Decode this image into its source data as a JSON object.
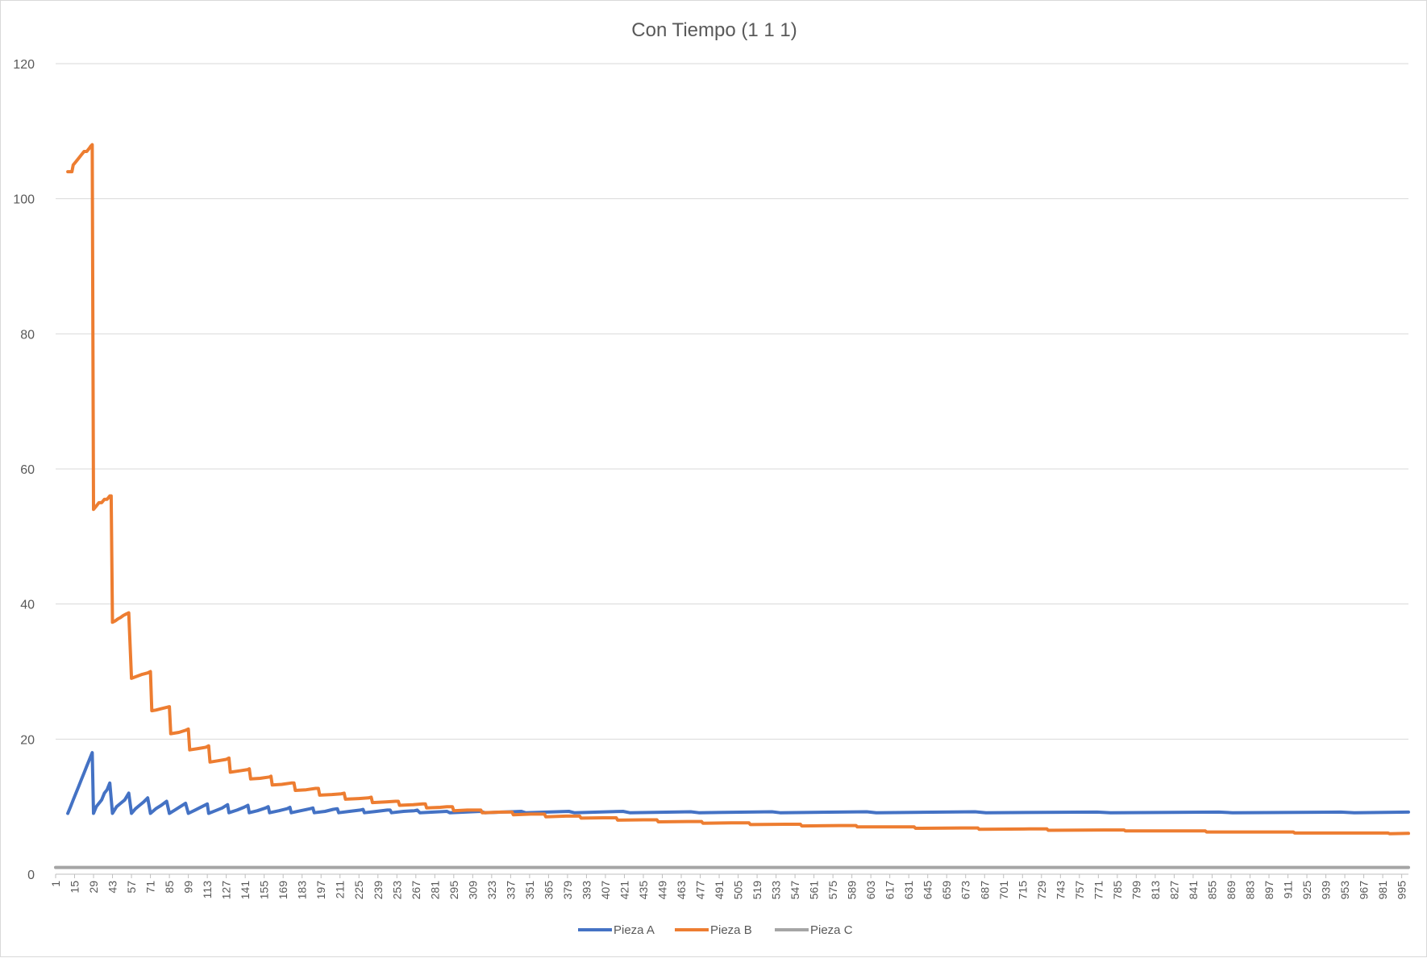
{
  "chart_data": {
    "type": "line",
    "title": "Con Tiempo (1 1 1)",
    "xlabel": "",
    "ylabel": "",
    "ylim": [
      0,
      120
    ],
    "yticks": [
      0,
      20,
      40,
      60,
      80,
      100,
      120
    ],
    "xlim": [
      1,
      1000
    ],
    "xticks": [
      1,
      15,
      29,
      43,
      57,
      71,
      85,
      99,
      113,
      127,
      141,
      155,
      169,
      183,
      197,
      211,
      225,
      239,
      253,
      267,
      281,
      295,
      309,
      323,
      337,
      351,
      365,
      379,
      393,
      407,
      421,
      435,
      449,
      463,
      477,
      491,
      505,
      519,
      533,
      547,
      561,
      575,
      589,
      603,
      617,
      631,
      645,
      659,
      673,
      687,
      701,
      715,
      729,
      743,
      757,
      771,
      785,
      799,
      813,
      827,
      841,
      855,
      869,
      883,
      897,
      911,
      925,
      939,
      953,
      967,
      981,
      995
    ],
    "grid": true,
    "legend_position": "bottom",
    "series": [
      {
        "name": "Pieza A",
        "color": "#4472C4",
        "points": [
          [
            10,
            9
          ],
          [
            12,
            10
          ],
          [
            14,
            11
          ],
          [
            16,
            12
          ],
          [
            18,
            13
          ],
          [
            20,
            14
          ],
          [
            22,
            15
          ],
          [
            24,
            16
          ],
          [
            26,
            17
          ],
          [
            28,
            18
          ],
          [
            29,
            9
          ],
          [
            31,
            10
          ],
          [
            33,
            10.5
          ],
          [
            35,
            11
          ],
          [
            37,
            12
          ],
          [
            39,
            12.5
          ],
          [
            41,
            13.5
          ],
          [
            43,
            9
          ],
          [
            46,
            10
          ],
          [
            49,
            10.5
          ],
          [
            52,
            11
          ],
          [
            55,
            12
          ],
          [
            57,
            9
          ],
          [
            60,
            9.7
          ],
          [
            63,
            10.2
          ],
          [
            66,
            10.7
          ],
          [
            69,
            11.3
          ],
          [
            71,
            9
          ],
          [
            75,
            9.7
          ],
          [
            79,
            10.2
          ],
          [
            83,
            10.8
          ],
          [
            85,
            9
          ],
          [
            89,
            9.5
          ],
          [
            93,
            10
          ],
          [
            97,
            10.5
          ],
          [
            99,
            9
          ],
          [
            104,
            9.5
          ],
          [
            109,
            10
          ],
          [
            113,
            10.4
          ],
          [
            114,
            9
          ],
          [
            119,
            9.4
          ],
          [
            124,
            9.8
          ],
          [
            128,
            10.3
          ],
          [
            129,
            9.1
          ],
          [
            135,
            9.5
          ],
          [
            140,
            9.9
          ],
          [
            143,
            10.2
          ],
          [
            144,
            9.1
          ],
          [
            150,
            9.4
          ],
          [
            156,
            9.8
          ],
          [
            158,
            10
          ],
          [
            159,
            9.1
          ],
          [
            166,
            9.4
          ],
          [
            172,
            9.7
          ],
          [
            174,
            9.9
          ],
          [
            175,
            9.1
          ],
          [
            182,
            9.4
          ],
          [
            189,
            9.7
          ],
          [
            191,
            9.8
          ],
          [
            192,
            9.1
          ],
          [
            200,
            9.3
          ],
          [
            206,
            9.6
          ],
          [
            209,
            9.7
          ],
          [
            210,
            9.1
          ],
          [
            218,
            9.3
          ],
          [
            226,
            9.5
          ],
          [
            228,
            9.6
          ],
          [
            229,
            9.1
          ],
          [
            238,
            9.3
          ],
          [
            246,
            9.5
          ],
          [
            248,
            9.5
          ],
          [
            249,
            9.1
          ],
          [
            258,
            9.3
          ],
          [
            266,
            9.4
          ],
          [
            268,
            9.5
          ],
          [
            270,
            9.1
          ],
          [
            290,
            9.3
          ],
          [
            292,
            9.1
          ],
          [
            315,
            9.3
          ],
          [
            318,
            9.1
          ],
          [
            345,
            9.3
          ],
          [
            348,
            9.1
          ],
          [
            380,
            9.3
          ],
          [
            384,
            9.1
          ],
          [
            420,
            9.3
          ],
          [
            425,
            9.1
          ],
          [
            470,
            9.25
          ],
          [
            476,
            9.1
          ],
          [
            530,
            9.25
          ],
          [
            536,
            9.1
          ],
          [
            600,
            9.25
          ],
          [
            607,
            9.1
          ],
          [
            680,
            9.25
          ],
          [
            688,
            9.1
          ],
          [
            770,
            9.2
          ],
          [
            780,
            9.1
          ],
          [
            860,
            9.2
          ],
          [
            870,
            9.1
          ],
          [
            950,
            9.2
          ],
          [
            960,
            9.1
          ],
          [
            1000,
            9.2
          ]
        ]
      },
      {
        "name": "Pieza B",
        "color": "#ED7D31",
        "points": [
          [
            10,
            104
          ],
          [
            13,
            104
          ],
          [
            14,
            105
          ],
          [
            16,
            105.5
          ],
          [
            18,
            106
          ],
          [
            20,
            106.5
          ],
          [
            22,
            107
          ],
          [
            24,
            107
          ],
          [
            26,
            107.5
          ],
          [
            27,
            107.8
          ],
          [
            28,
            108
          ],
          [
            29,
            54
          ],
          [
            31,
            54.5
          ],
          [
            33,
            55
          ],
          [
            35,
            55
          ],
          [
            37,
            55.5
          ],
          [
            39,
            55.5
          ],
          [
            41,
            56
          ],
          [
            42,
            56
          ],
          [
            43,
            37.3
          ],
          [
            45,
            37.5
          ],
          [
            47,
            37.8
          ],
          [
            49,
            38
          ],
          [
            51,
            38.3
          ],
          [
            53,
            38.5
          ],
          [
            55,
            38.7
          ],
          [
            57,
            29
          ],
          [
            61,
            29.3
          ],
          [
            65,
            29.6
          ],
          [
            69,
            29.8
          ],
          [
            71,
            30
          ],
          [
            72,
            24.2
          ],
          [
            75,
            24.3
          ],
          [
            79,
            24.5
          ],
          [
            83,
            24.7
          ],
          [
            85,
            24.8
          ],
          [
            86,
            20.8
          ],
          [
            92,
            21
          ],
          [
            97,
            21.3
          ],
          [
            99,
            21.5
          ],
          [
            100,
            18.4
          ],
          [
            106,
            18.6
          ],
          [
            112,
            18.8
          ],
          [
            114,
            19
          ],
          [
            115,
            16.6
          ],
          [
            121,
            16.8
          ],
          [
            127,
            17
          ],
          [
            129,
            17.2
          ],
          [
            130,
            15.1
          ],
          [
            137,
            15.3
          ],
          [
            143,
            15.5
          ],
          [
            144,
            15.6
          ],
          [
            145,
            14.1
          ],
          [
            152,
            14.2
          ],
          [
            159,
            14.4
          ],
          [
            160,
            14.5
          ],
          [
            161,
            13.2
          ],
          [
            168,
            13.3
          ],
          [
            175,
            13.5
          ],
          [
            177,
            13.5
          ],
          [
            178,
            12.4
          ],
          [
            186,
            12.5
          ],
          [
            193,
            12.7
          ],
          [
            195,
            12.7
          ],
          [
            196,
            11.7
          ],
          [
            205,
            11.8
          ],
          [
            212,
            11.9
          ],
          [
            214,
            12
          ],
          [
            215,
            11.1
          ],
          [
            225,
            11.2
          ],
          [
            232,
            11.3
          ],
          [
            234,
            11.4
          ],
          [
            235,
            10.6
          ],
          [
            245,
            10.7
          ],
          [
            252,
            10.8
          ],
          [
            254,
            10.8
          ],
          [
            255,
            10.2
          ],
          [
            265,
            10.3
          ],
          [
            272,
            10.4
          ],
          [
            274,
            10.4
          ],
          [
            275,
            9.8
          ],
          [
            285,
            9.9
          ],
          [
            290,
            10
          ],
          [
            294,
            10
          ],
          [
            295,
            9.4
          ],
          [
            305,
            9.5
          ],
          [
            315,
            9.5
          ],
          [
            316,
            9.1
          ],
          [
            330,
            9.2
          ],
          [
            338,
            9.2
          ],
          [
            339,
            8.8
          ],
          [
            352,
            8.9
          ],
          [
            362,
            8.9
          ],
          [
            363,
            8.5
          ],
          [
            378,
            8.6
          ],
          [
            388,
            8.6
          ],
          [
            389,
            8.3
          ],
          [
            405,
            8.35
          ],
          [
            415,
            8.35
          ],
          [
            416,
            8.0
          ],
          [
            435,
            8.05
          ],
          [
            445,
            8.05
          ],
          [
            446,
            7.75
          ],
          [
            468,
            7.8
          ],
          [
            478,
            7.8
          ],
          [
            479,
            7.55
          ],
          [
            500,
            7.6
          ],
          [
            513,
            7.6
          ],
          [
            514,
            7.35
          ],
          [
            540,
            7.4
          ],
          [
            551,
            7.4
          ],
          [
            552,
            7.15
          ],
          [
            580,
            7.2
          ],
          [
            592,
            7.2
          ],
          [
            593,
            7.0
          ],
          [
            620,
            7.0
          ],
          [
            635,
            7.0
          ],
          [
            636,
            6.8
          ],
          [
            670,
            6.85
          ],
          [
            682,
            6.85
          ],
          [
            683,
            6.65
          ],
          [
            720,
            6.7
          ],
          [
            733,
            6.7
          ],
          [
            734,
            6.5
          ],
          [
            775,
            6.55
          ],
          [
            790,
            6.55
          ],
          [
            791,
            6.4
          ],
          [
            830,
            6.4
          ],
          [
            850,
            6.4
          ],
          [
            851,
            6.25
          ],
          [
            890,
            6.25
          ],
          [
            915,
            6.25
          ],
          [
            916,
            6.1
          ],
          [
            960,
            6.1
          ],
          [
            985,
            6.1
          ],
          [
            986,
            6.0
          ],
          [
            1000,
            6.05
          ]
        ]
      },
      {
        "name": "Pieza C",
        "color": "#A5A5A5",
        "points": [
          [
            1,
            1
          ],
          [
            1000,
            1
          ]
        ]
      }
    ]
  }
}
